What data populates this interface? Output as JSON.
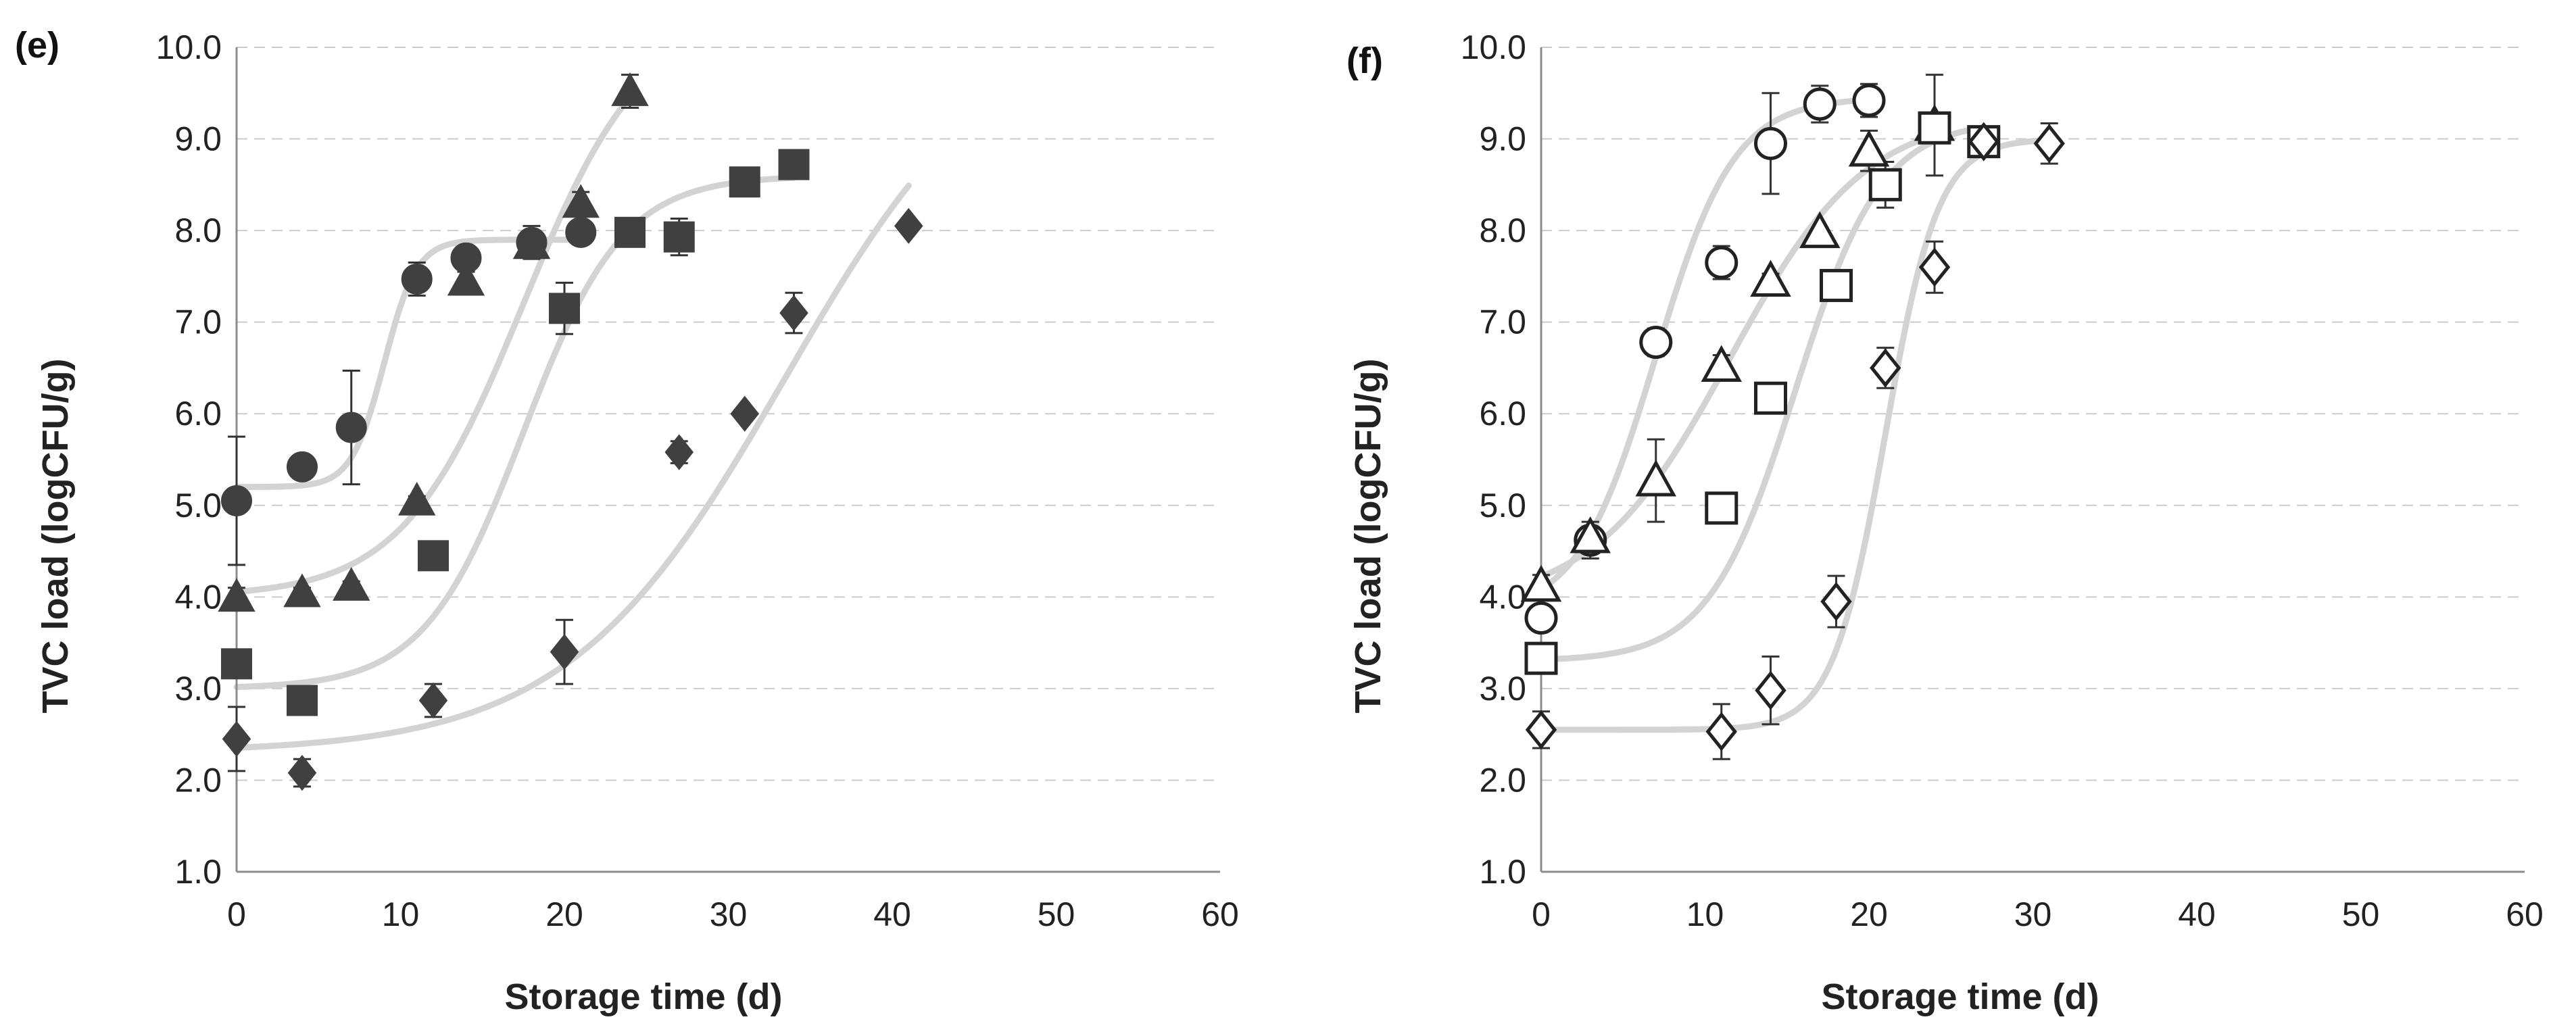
{
  "colors": {
    "filled_marker": "#404040",
    "open_marker_stroke": "#222222",
    "open_marker_fill": "#ffffff",
    "fit_curve": "#d3d3d3",
    "gridline": "#cccccc",
    "axis": "#8c8c8c",
    "error_bar": "#333333"
  },
  "chart_data": [
    {
      "panel_label": "(e)",
      "type": "scatter",
      "marker_style": "filled",
      "xlabel": "Storage time (d)",
      "ylabel": "TVC load (logCFU/g)",
      "xlim": [
        0,
        60
      ],
      "ylim": [
        1.0,
        10.0
      ],
      "x_ticks": [
        "0",
        "10",
        "20",
        "30",
        "40",
        "50",
        "60"
      ],
      "y_ticks": [
        "1.0",
        "2.0",
        "3.0",
        "4.0",
        "5.0",
        "6.0",
        "7.0",
        "8.0",
        "9.0",
        "10.0"
      ],
      "grid": "horizontal dashed",
      "series": [
        {
          "marker": "circle",
          "points": [
            {
              "x": 0,
              "y": 5.05,
              "err": 0.7
            },
            {
              "x": 4,
              "y": 5.42,
              "err": 0.05
            },
            {
              "x": 7,
              "y": 5.85,
              "err": 0.62
            },
            {
              "x": 11,
              "y": 7.47,
              "err": 0.18
            },
            {
              "x": 14,
              "y": 7.7,
              "err": 0.07
            },
            {
              "x": 18,
              "y": 7.87,
              "err": 0.18
            },
            {
              "x": 21,
              "y": 7.98,
              "err": 0.08
            }
          ],
          "fit": {
            "y0": 5.2,
            "ymax": 7.9,
            "k": 1.0,
            "x50": 9.0
          }
        },
        {
          "marker": "triangle",
          "points": [
            {
              "x": 0,
              "y": 4.0,
              "err": 0.1
            },
            {
              "x": 4,
              "y": 4.05,
              "err": 0.05
            },
            {
              "x": 7,
              "y": 4.12,
              "err": 0.05
            },
            {
              "x": 11,
              "y": 5.05,
              "err": 0.05
            },
            {
              "x": 14,
              "y": 7.45,
              "err": 0.1
            },
            {
              "x": 18,
              "y": 7.85,
              "err": 0.15
            },
            {
              "x": 21,
              "y": 8.3,
              "err": 0.12
            },
            {
              "x": 24,
              "y": 9.52,
              "err": 0.18
            }
          ],
          "fit": {
            "y0": 4.0,
            "ymax": 10.4,
            "k": 0.27,
            "x50": 17.5
          }
        },
        {
          "marker": "square",
          "points": [
            {
              "x": 0,
              "y": 3.27,
              "err": 0.1
            },
            {
              "x": 4,
              "y": 2.87,
              "err": 0.05
            },
            {
              "x": 12,
              "y": 4.45,
              "err": 0.05
            },
            {
              "x": 20,
              "y": 7.15,
              "err": 0.28
            },
            {
              "x": 24,
              "y": 7.98,
              "err": 0.05
            },
            {
              "x": 27,
              "y": 7.93,
              "err": 0.2
            },
            {
              "x": 31,
              "y": 8.53,
              "err": 0.05
            },
            {
              "x": 34,
              "y": 8.72,
              "err": 0.05
            }
          ],
          "fit": {
            "y0": 3.0,
            "ymax": 8.6,
            "k": 0.33,
            "x50": 17.5
          }
        },
        {
          "marker": "diamond",
          "points": [
            {
              "x": 0,
              "y": 2.45,
              "err": 0.35
            },
            {
              "x": 4,
              "y": 2.08,
              "err": 0.15
            },
            {
              "x": 12,
              "y": 2.87,
              "err": 0.18
            },
            {
              "x": 20,
              "y": 3.4,
              "err": 0.35
            },
            {
              "x": 27,
              "y": 5.58,
              "err": 0.12
            },
            {
              "x": 31,
              "y": 6.0,
              "err": 0.05
            },
            {
              "x": 34,
              "y": 7.1,
              "err": 0.22
            },
            {
              "x": 41,
              "y": 8.05,
              "err": 0.05
            }
          ],
          "fit": {
            "y0": 2.3,
            "ymax": 10.5,
            "k": 0.15,
            "x50": 33.5
          }
        }
      ]
    },
    {
      "panel_label": "(f)",
      "type": "scatter",
      "marker_style": "open",
      "xlabel": "Storage time (d)",
      "ylabel": "TVC load (logCFU/g)",
      "xlim": [
        0,
        60
      ],
      "ylim": [
        1.0,
        10.0
      ],
      "x_ticks": [
        "0",
        "10",
        "20",
        "30",
        "40",
        "50",
        "60"
      ],
      "y_ticks": [
        "1.0",
        "2.0",
        "3.0",
        "4.0",
        "5.0",
        "6.0",
        "7.0",
        "8.0",
        "9.0",
        "10.0"
      ],
      "grid": "horizontal dashed",
      "series": [
        {
          "marker": "circle",
          "points": [
            {
              "x": 0,
              "y": 3.77,
              "err": 0.12
            },
            {
              "x": 3,
              "y": 4.62,
              "err": 0.2
            },
            {
              "x": 7,
              "y": 6.78,
              "err": 0.15
            },
            {
              "x": 11,
              "y": 7.65,
              "err": 0.18
            },
            {
              "x": 14,
              "y": 8.95,
              "err": 0.55
            },
            {
              "x": 17,
              "y": 9.38,
              "err": 0.2
            },
            {
              "x": 20,
              "y": 9.42,
              "err": 0.18
            }
          ],
          "fit": {
            "y0": 3.8,
            "ymax": 9.45,
            "k": 0.42,
            "x50": 7.0
          }
        },
        {
          "marker": "triangle",
          "points": [
            {
              "x": 0,
              "y": 4.12,
              "err": 0.12
            },
            {
              "x": 3,
              "y": 4.65,
              "err": 0.12
            },
            {
              "x": 7,
              "y": 5.27,
              "err": 0.45
            },
            {
              "x": 11,
              "y": 6.52,
              "err": 0.12
            },
            {
              "x": 14,
              "y": 7.45,
              "err": 0.08
            },
            {
              "x": 17,
              "y": 7.98,
              "err": 0.05
            },
            {
              "x": 20,
              "y": 8.87,
              "err": 0.22
            },
            {
              "x": 24,
              "y": 9.15,
              "err": 0.55
            }
          ],
          "fit": {
            "y0": 3.9,
            "ymax": 9.3,
            "k": 0.24,
            "x50": 11.5
          }
        },
        {
          "marker": "square",
          "points": [
            {
              "x": 0,
              "y": 3.33,
              "err": 0.1
            },
            {
              "x": 11,
              "y": 4.97,
              "err": 0.05
            },
            {
              "x": 14,
              "y": 6.17,
              "err": 0.05
            },
            {
              "x": 18,
              "y": 7.4,
              "err": 0.05
            },
            {
              "x": 21,
              "y": 8.5,
              "err": 0.25
            },
            {
              "x": 24,
              "y": 9.12,
              "err": 0.1
            },
            {
              "x": 27,
              "y": 8.97,
              "err": 0.12
            }
          ],
          "fit": {
            "y0": 3.3,
            "ymax": 9.2,
            "k": 0.38,
            "x50": 15.5
          }
        },
        {
          "marker": "diamond",
          "points": [
            {
              "x": 0,
              "y": 2.55,
              "err": 0.2
            },
            {
              "x": 11,
              "y": 2.53,
              "err": 0.3
            },
            {
              "x": 14,
              "y": 2.98,
              "err": 0.37
            },
            {
              "x": 18,
              "y": 3.95,
              "err": 0.28
            },
            {
              "x": 21,
              "y": 6.5,
              "err": 0.22
            },
            {
              "x": 24,
              "y": 7.6,
              "err": 0.28
            },
            {
              "x": 27,
              "y": 8.97,
              "err": 0.15
            },
            {
              "x": 31,
              "y": 8.95,
              "err": 0.22
            }
          ],
          "fit": {
            "y0": 2.55,
            "ymax": 9.0,
            "k": 0.62,
            "x50": 21.0
          }
        }
      ]
    }
  ]
}
